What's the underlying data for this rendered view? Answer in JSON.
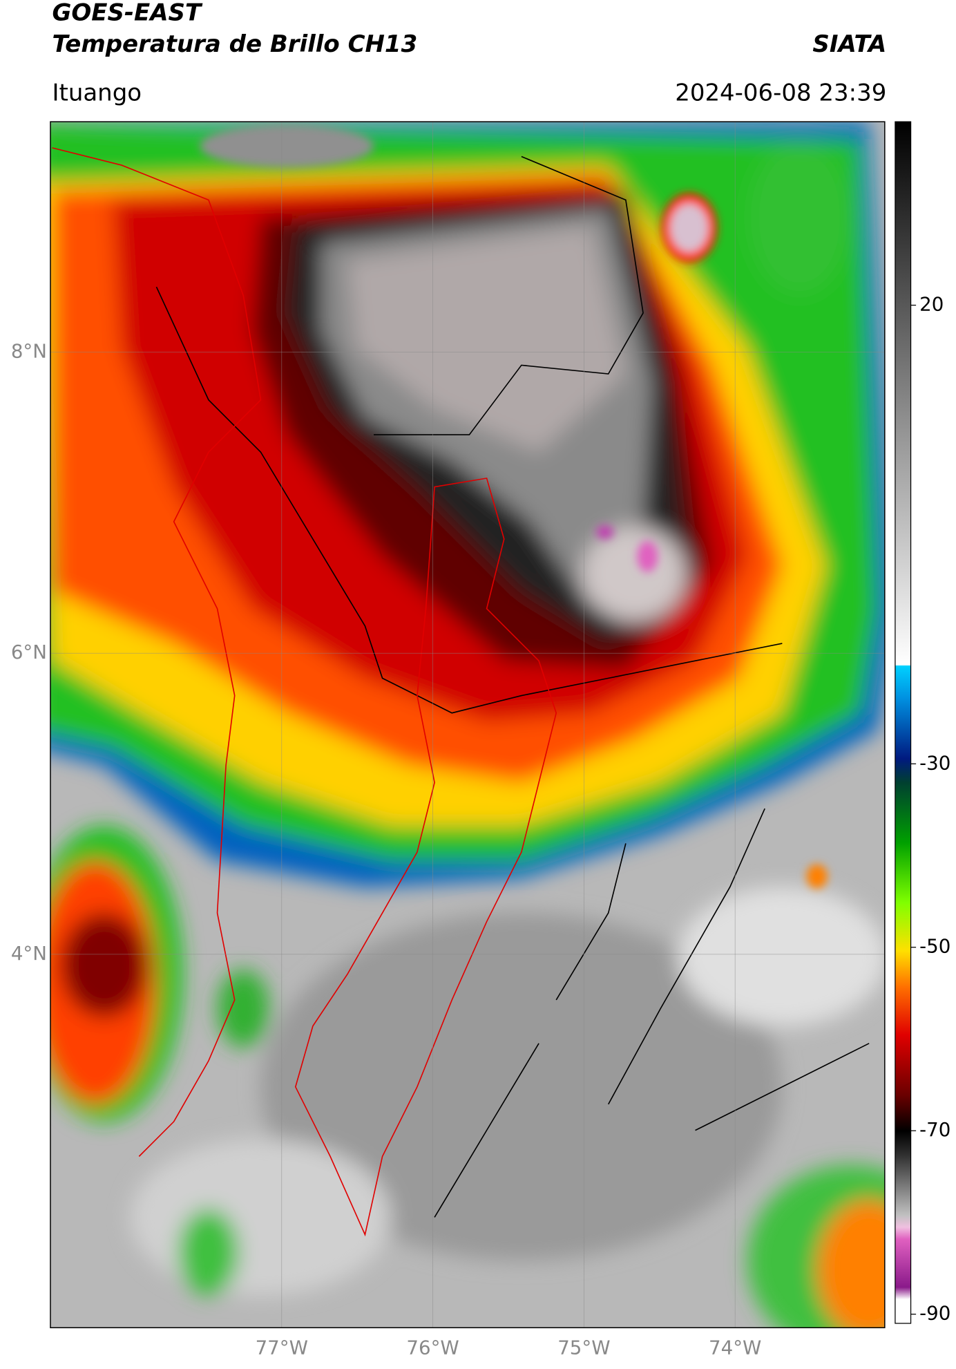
{
  "header": {
    "title_lines": [
      "GOES-EAST",
      "Temperatura de Brillo CH13"
    ],
    "source": "SIATA",
    "location": "Ituango",
    "datetime": "2024-06-08 23:39"
  },
  "map": {
    "lon_range": [
      -78.53,
      -73.01
    ],
    "lat_range": [
      1.52,
      9.53
    ],
    "lon_ticks": [
      {
        "value": -77,
        "label": "77°W"
      },
      {
        "value": -76,
        "label": "76°W"
      },
      {
        "value": -75,
        "label": "75°W"
      },
      {
        "value": -74,
        "label": "74°W"
      }
    ],
    "lat_ticks": [
      {
        "value": 8,
        "label": "8°N"
      },
      {
        "value": 6,
        "label": "6°N"
      },
      {
        "value": 4,
        "label": "4°N"
      }
    ]
  },
  "colorbar": {
    "range": [
      -91,
      40
    ],
    "ticks": [
      20,
      -30,
      -50,
      -70,
      -90
    ]
  }
}
